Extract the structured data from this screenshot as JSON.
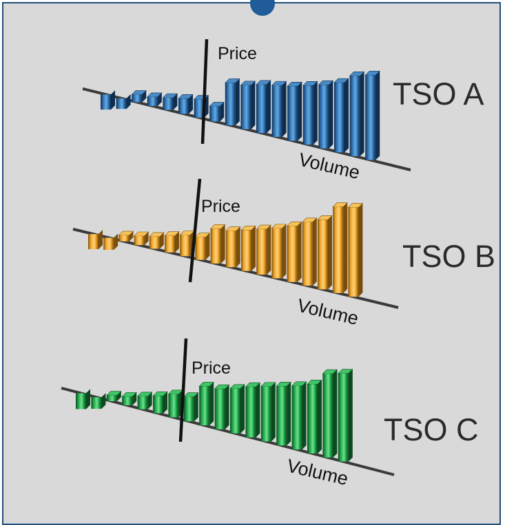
{
  "chart_data": [
    {
      "type": "bar",
      "name": "TSO A",
      "title": "TSO A",
      "ylabel": "Price",
      "xlabel": "Volume",
      "values": [
        -1.0,
        -0.7,
        0.5,
        0.6,
        0.8,
        1.0,
        1.2,
        1.0,
        2.8,
        2.9,
        3.2,
        3.4,
        3.6,
        3.9,
        4.2,
        4.6,
        5.3,
        5.6
      ],
      "colors": {
        "front": "#2e75b6",
        "dark": "#0e2d4f",
        "light": "#6aa9de",
        "top": "#4a8bc6"
      }
    },
    {
      "type": "bar",
      "name": "TSO B",
      "title": "TSO B",
      "ylabel": "Price",
      "xlabel": "Volume",
      "values": [
        -1.0,
        -0.8,
        0.4,
        0.6,
        0.8,
        1.1,
        1.4,
        1.5,
        2.3,
        2.4,
        2.7,
        3.0,
        3.3,
        3.7,
        4.2,
        4.6,
        5.7,
        5.9
      ],
      "colors": {
        "front": "#f0a62b",
        "dark": "#7a4e0a",
        "light": "#ffd27a",
        "top": "#f8c25a"
      }
    },
    {
      "type": "bar",
      "name": "TSO C",
      "title": "TSO C",
      "ylabel": "Price",
      "xlabel": "Volume",
      "values": [
        -1.1,
        -0.8,
        0.4,
        0.6,
        0.9,
        1.2,
        1.6,
        1.7,
        2.7,
        2.8,
        3.1,
        3.5,
        3.8,
        4.1,
        4.4,
        4.8,
        5.8,
        6.1
      ],
      "colors": {
        "front": "#1fa84a",
        "dark": "#0b4a1e",
        "light": "#6fe08f",
        "top": "#3fc466"
      }
    }
  ]
}
